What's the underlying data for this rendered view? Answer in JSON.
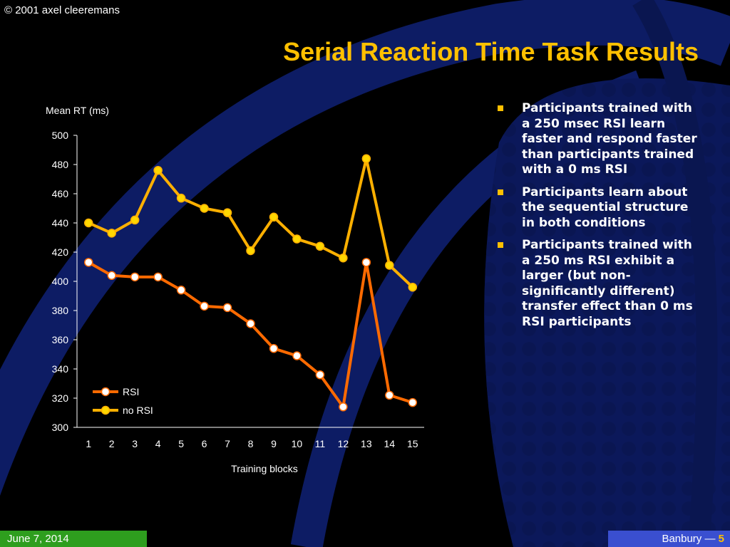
{
  "header": {
    "copyright": "© 2001 axel cleeremans",
    "title": "Serial Reaction Time Task Results"
  },
  "bullets": [
    "Participants trained with a 250 msec RSI learn faster and respond faster than participants trained with a 0 ms RSI",
    "Participants learn about the sequential structure in both conditions",
    "Participants trained with a 250 ms RSI exhibit a larger (but non-significantly different) transfer effect than 0 ms RSI participants"
  ],
  "footer": {
    "date": "June 7, 2014",
    "presenter": "Banbury — ",
    "page": "5"
  },
  "colors": {
    "title": "#FFC000",
    "rsi_line": "#FF6A00",
    "norsi_line": "#FFB000",
    "background_swirl": "#0F1F6E",
    "footer_left": "#2E9E1E",
    "footer_right": "#3A4FD0"
  },
  "chart_data": {
    "type": "line",
    "title": "",
    "xlabel": "Training blocks",
    "ylabel": "Mean RT (ms)",
    "categories": [
      "1",
      "2",
      "3",
      "4",
      "5",
      "6",
      "7",
      "8",
      "9",
      "10",
      "11",
      "12",
      "13",
      "14",
      "15"
    ],
    "ylim": [
      300,
      500
    ],
    "yticks": [
      300,
      320,
      340,
      360,
      380,
      400,
      420,
      440,
      460,
      480,
      500
    ],
    "legend_position": "bottom-left",
    "series": [
      {
        "name": "RSI",
        "color": "#FF6A00",
        "marker_fill": "#FFFFFF",
        "values": [
          413,
          404,
          403,
          403,
          394,
          383,
          382,
          371,
          354,
          349,
          336,
          314,
          413,
          322,
          317
        ]
      },
      {
        "name": "no RSI",
        "color": "#FFB000",
        "marker_fill": "#FFD700",
        "values": [
          440,
          433,
          442,
          476,
          457,
          450,
          447,
          421,
          444,
          429,
          424,
          416,
          484,
          411,
          396
        ]
      }
    ]
  }
}
